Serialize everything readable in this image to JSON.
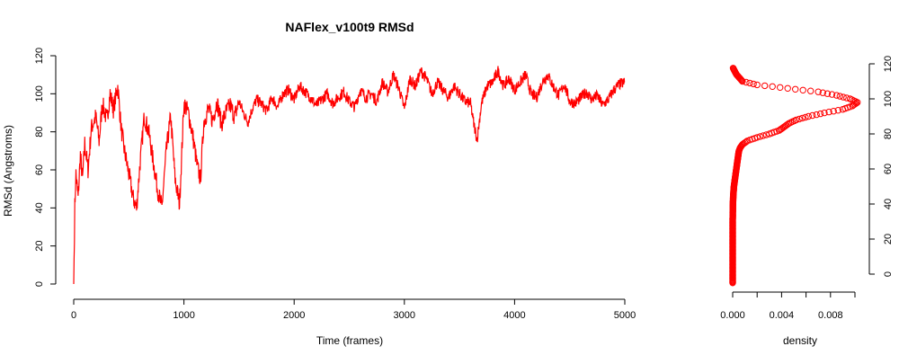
{
  "chart_data": [
    {
      "type": "line",
      "title": "NAFlex_v100t9 RMSd",
      "xlabel": "Time (frames)",
      "ylabel": "RMSd (Angstroms)",
      "xlim": [
        0,
        5000
      ],
      "ylim": [
        0,
        120
      ],
      "xticks": [
        "0",
        "1000",
        "2000",
        "3000",
        "4000",
        "5000"
      ],
      "yticks": [
        "0",
        "20",
        "40",
        "60",
        "80",
        "100",
        "120"
      ],
      "color": "#ff0000",
      "grid": false,
      "x": [
        0,
        10,
        20,
        40,
        60,
        80,
        100,
        130,
        160,
        200,
        230,
        260,
        300,
        330,
        360,
        400,
        430,
        460,
        500,
        540,
        570,
        600,
        640,
        680,
        720,
        760,
        800,
        840,
        880,
        920,
        960,
        1000,
        1040,
        1080,
        1120,
        1150,
        1180,
        1220,
        1260,
        1300,
        1340,
        1380,
        1420,
        1460,
        1500,
        1540,
        1580,
        1620,
        1660,
        1700,
        1750,
        1800,
        1850,
        1900,
        1950,
        2000,
        2050,
        2100,
        2150,
        2200,
        2250,
        2300,
        2350,
        2400,
        2450,
        2500,
        2550,
        2600,
        2650,
        2700,
        2750,
        2800,
        2850,
        2900,
        2950,
        3000,
        3050,
        3100,
        3150,
        3200,
        3250,
        3300,
        3350,
        3400,
        3450,
        3500,
        3550,
        3600,
        3630,
        3660,
        3700,
        3750,
        3800,
        3850,
        3900,
        3950,
        4000,
        4050,
        4100,
        4150,
        4200,
        4250,
        4300,
        4350,
        4400,
        4450,
        4500,
        4550,
        4600,
        4650,
        4700,
        4750,
        4800,
        4850,
        4900,
        4950,
        5000
      ],
      "y": [
        0,
        40,
        58,
        45,
        68,
        55,
        74,
        60,
        82,
        88,
        75,
        95,
        86,
        100,
        92,
        104,
        82,
        70,
        58,
        45,
        40,
        62,
        88,
        80,
        65,
        50,
        40,
        70,
        88,
        55,
        42,
        95,
        90,
        78,
        62,
        55,
        85,
        92,
        86,
        96,
        84,
        90,
        94,
        88,
        96,
        90,
        85,
        92,
        97,
        95,
        91,
        98,
        93,
        100,
        102,
        97,
        104,
        101,
        98,
        94,
        97,
        100,
        95,
        98,
        101,
        96,
        93,
        102,
        98,
        100,
        96,
        106,
        101,
        110,
        103,
        92,
        108,
        104,
        112,
        108,
        100,
        106,
        102,
        98,
        104,
        100,
        96,
        95,
        84,
        76,
        95,
        104,
        106,
        112,
        104,
        108,
        102,
        106,
        110,
        100,
        98,
        106,
        110,
        104,
        99,
        105,
        96,
        95,
        98,
        101,
        97,
        99,
        94,
        97,
        102,
        105,
        106
      ]
    },
    {
      "type": "scatter",
      "xlabel": "density",
      "ylabel": "",
      "xlim": [
        0,
        0.01
      ],
      "ylim": [
        -5,
        120
      ],
      "xticks": [
        "0.000",
        "0.004",
        "0.008"
      ],
      "yticks": [
        "0",
        "20",
        "40",
        "60",
        "80",
        "100",
        "120"
      ],
      "color": "#ff0000",
      "x": [
        0,
        0,
        0,
        1e-05,
        2e-05,
        5e-05,
        0.0001,
        0.0002,
        0.0003,
        0.0004,
        0.0005,
        0.0006,
        0.0008,
        0.0012,
        0.002,
        0.003,
        0.0038,
        0.0042,
        0.0046,
        0.0052,
        0.0062,
        0.0075,
        0.009,
        0.0098,
        0.0102,
        0.0096,
        0.0085,
        0.007,
        0.0045,
        0.002,
        0.0008,
        0.0003,
        0
      ],
      "y": [
        -5,
        10,
        30,
        35,
        40,
        45,
        50,
        55,
        60,
        65,
        70,
        72,
        74,
        76,
        78,
        80,
        82,
        84,
        86,
        88,
        90,
        92,
        94,
        96,
        98,
        100,
        102,
        104,
        106,
        108,
        110,
        114,
        118
      ]
    }
  ]
}
